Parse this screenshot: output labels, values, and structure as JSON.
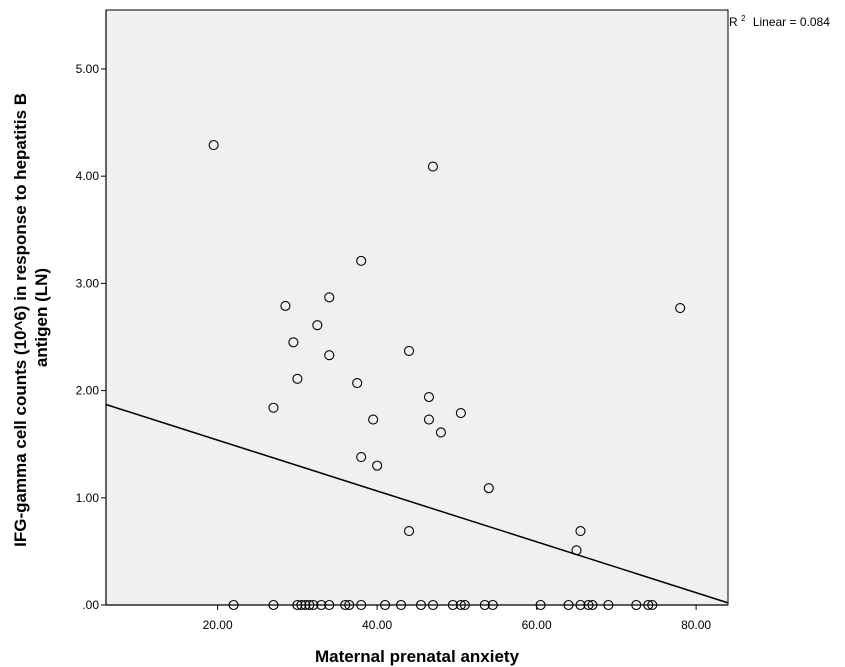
{
  "chart_data": {
    "type": "scatter",
    "title": "",
    "xlabel": "Maternal prenatal anxiety",
    "ylabel_line1": "IFG-gamma cell counts (10^6) in response to hepatitis B",
    "ylabel_line2": "antigen (LN)",
    "xlim": [
      6,
      84
    ],
    "ylim": [
      0,
      5.55
    ],
    "x_ticks": [
      20,
      40,
      60,
      80
    ],
    "x_tick_labels": [
      "20.00",
      "40.00",
      "60.00",
      "80.00"
    ],
    "y_ticks": [
      0,
      1,
      2,
      3,
      4,
      5
    ],
    "y_tick_labels": [
      ".00",
      "1.00",
      "2.00",
      "3.00",
      "4.00",
      "5.00"
    ],
    "grid": false,
    "marker": "open-circle",
    "background_color": "#f0f0f0",
    "line_color": "#000000",
    "fit_line": {
      "label_prefix": "R",
      "label_superscript": "2",
      "label_suffix": "Linear = 0.084",
      "points": [
        [
          6,
          1.87
        ],
        [
          84,
          0.02
        ]
      ]
    },
    "points": [
      [
        19.5,
        4.29
      ],
      [
        47,
        4.09
      ],
      [
        38,
        3.21
      ],
      [
        28.5,
        2.79
      ],
      [
        34,
        2.87
      ],
      [
        32.5,
        2.61
      ],
      [
        29.5,
        2.45
      ],
      [
        34,
        2.33
      ],
      [
        44,
        2.37
      ],
      [
        78,
        2.77
      ],
      [
        30,
        2.11
      ],
      [
        37.5,
        2.07
      ],
      [
        46.5,
        1.94
      ],
      [
        27,
        1.84
      ],
      [
        39.5,
        1.73
      ],
      [
        46.5,
        1.73
      ],
      [
        50.5,
        1.79
      ],
      [
        48,
        1.61
      ],
      [
        38,
        1.38
      ],
      [
        40,
        1.3
      ],
      [
        54,
        1.09
      ],
      [
        44,
        0.69
      ],
      [
        65.5,
        0.69
      ],
      [
        65,
        0.51
      ],
      [
        22,
        0
      ],
      [
        27,
        0
      ],
      [
        30,
        0
      ],
      [
        30.5,
        0
      ],
      [
        31,
        0
      ],
      [
        31.5,
        0
      ],
      [
        32,
        0
      ],
      [
        33,
        0
      ],
      [
        34,
        0
      ],
      [
        36,
        0
      ],
      [
        36.5,
        0
      ],
      [
        38,
        0
      ],
      [
        41,
        0
      ],
      [
        43,
        0
      ],
      [
        45.5,
        0
      ],
      [
        47,
        0
      ],
      [
        49.5,
        0
      ],
      [
        50.5,
        0
      ],
      [
        51,
        0
      ],
      [
        53.5,
        0
      ],
      [
        54.5,
        0
      ],
      [
        60.5,
        0
      ],
      [
        64,
        0
      ],
      [
        65.5,
        0
      ],
      [
        66.5,
        0
      ],
      [
        67,
        0
      ],
      [
        69,
        0
      ],
      [
        72.5,
        0
      ],
      [
        74,
        0
      ],
      [
        74.5,
        0
      ]
    ]
  }
}
